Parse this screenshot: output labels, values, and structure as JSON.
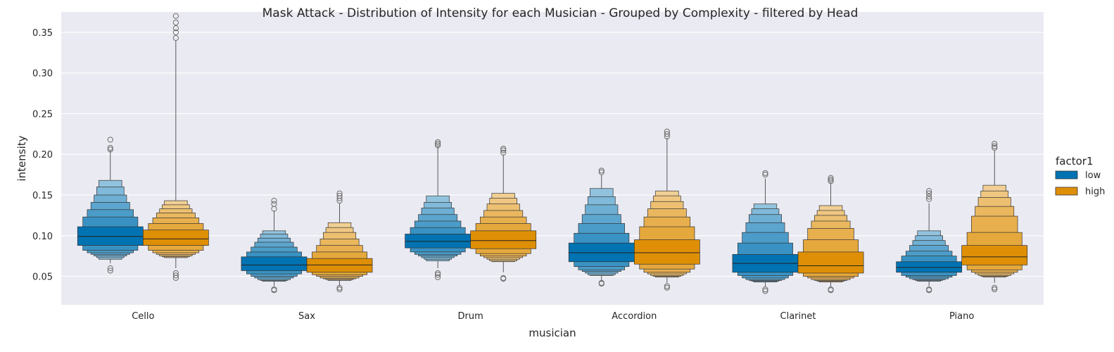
{
  "chart_data": {
    "type": "boxen",
    "title": "Mask Attack - Distribution of Intensity for each Musician - Grouped by Complexity - filtered by Head",
    "xlabel": "musician",
    "ylabel": "intensity",
    "ylim": [
      0.015,
      0.375
    ],
    "yticks": [
      0.05,
      0.1,
      0.15,
      0.2,
      0.25,
      0.3,
      0.35
    ],
    "ytick_labels": [
      "0.05",
      "0.10",
      "0.15",
      "0.20",
      "0.25",
      "0.30",
      "0.35"
    ],
    "grid": true,
    "legend_position": "right",
    "legend_title": "factor1",
    "categories": [
      "Cello",
      "Sax",
      "Drum",
      "Accordion",
      "Clarinet",
      "Piano"
    ],
    "series": [
      {
        "name": "low",
        "color": "#0173b2",
        "boxes": [
          {
            "median": 0.099,
            "quantiles": [
              [
                0.088,
                0.111
              ],
              [
                0.082,
                0.123
              ],
              [
                0.079,
                0.132
              ],
              [
                0.077,
                0.141
              ],
              [
                0.075,
                0.15
              ],
              [
                0.073,
                0.16
              ],
              [
                0.071,
                0.168
              ]
            ],
            "whisker_low": 0.066,
            "whisker_high": 0.205,
            "outliers": [
              0.218,
              0.208,
              0.206,
              0.06,
              0.057
            ]
          },
          {
            "median": 0.064,
            "quantiles": [
              [
                0.057,
                0.074
              ],
              [
                0.053,
                0.08
              ],
              [
                0.05,
                0.086
              ],
              [
                0.048,
                0.092
              ],
              [
                0.046,
                0.097
              ],
              [
                0.045,
                0.102
              ],
              [
                0.044,
                0.106
              ]
            ],
            "whisker_low": 0.038,
            "whisker_high": 0.131,
            "outliers": [
              0.143,
              0.139,
              0.133,
              0.034,
              0.033
            ]
          },
          {
            "median": 0.093,
            "quantiles": [
              [
                0.085,
                0.102
              ],
              [
                0.08,
                0.11
              ],
              [
                0.077,
                0.118
              ],
              [
                0.075,
                0.126
              ],
              [
                0.073,
                0.134
              ],
              [
                0.071,
                0.141
              ],
              [
                0.069,
                0.149
              ]
            ],
            "whisker_low": 0.06,
            "whisker_high": 0.21,
            "outliers": [
              0.215,
              0.213,
              0.211,
              0.054,
              0.052,
              0.049
            ]
          },
          {
            "median": 0.079,
            "quantiles": [
              [
                0.068,
                0.091
              ],
              [
                0.062,
                0.103
              ],
              [
                0.058,
                0.115
              ],
              [
                0.056,
                0.126
              ],
              [
                0.054,
                0.138
              ],
              [
                0.052,
                0.148
              ],
              [
                0.051,
                0.158
              ]
            ],
            "whisker_low": 0.044,
            "whisker_high": 0.175,
            "outliers": [
              0.18,
              0.178,
              0.042,
              0.041
            ]
          },
          {
            "median": 0.066,
            "quantiles": [
              [
                0.055,
                0.077
              ],
              [
                0.051,
                0.091
              ],
              [
                0.048,
                0.104
              ],
              [
                0.046,
                0.116
              ],
              [
                0.045,
                0.126
              ],
              [
                0.044,
                0.133
              ],
              [
                0.043,
                0.139
              ]
            ],
            "whisker_low": 0.037,
            "whisker_high": 0.17,
            "outliers": [
              0.177,
              0.175,
              0.034,
              0.032
            ]
          },
          {
            "median": 0.061,
            "quantiles": [
              [
                0.055,
                0.068
              ],
              [
                0.051,
                0.075
              ],
              [
                0.049,
                0.081
              ],
              [
                0.047,
                0.088
              ],
              [
                0.046,
                0.094
              ],
              [
                0.045,
                0.1
              ],
              [
                0.044,
                0.106
              ]
            ],
            "whisker_low": 0.038,
            "whisker_high": 0.14,
            "outliers": [
              0.155,
              0.152,
              0.148,
              0.145,
              0.034,
              0.033
            ]
          }
        ]
      },
      {
        "name": "high",
        "color": "#de8f05",
        "boxes": [
          {
            "median": 0.096,
            "quantiles": [
              [
                0.088,
                0.107
              ],
              [
                0.082,
                0.115
              ],
              [
                0.079,
                0.122
              ],
              [
                0.077,
                0.128
              ],
              [
                0.075,
                0.133
              ],
              [
                0.074,
                0.138
              ],
              [
                0.073,
                0.143
              ]
            ],
            "whisker_low": 0.06,
            "whisker_high": 0.34,
            "outliers": [
              0.37,
              0.362,
              0.355,
              0.35,
              0.343,
              0.054,
              0.051,
              0.048
            ]
          },
          {
            "median": 0.064,
            "quantiles": [
              [
                0.055,
                0.072
              ],
              [
                0.052,
                0.08
              ],
              [
                0.05,
                0.088
              ],
              [
                0.048,
                0.096
              ],
              [
                0.047,
                0.104
              ],
              [
                0.046,
                0.11
              ],
              [
                0.045,
                0.116
              ]
            ],
            "whisker_low": 0.038,
            "whisker_high": 0.14,
            "outliers": [
              0.152,
              0.149,
              0.146,
              0.143,
              0.036,
              0.034
            ]
          },
          {
            "median": 0.094,
            "quantiles": [
              [
                0.084,
                0.106
              ],
              [
                0.078,
                0.115
              ],
              [
                0.075,
                0.123
              ],
              [
                0.073,
                0.131
              ],
              [
                0.071,
                0.139
              ],
              [
                0.069,
                0.146
              ],
              [
                0.068,
                0.152
              ]
            ],
            "whisker_low": 0.055,
            "whisker_high": 0.2,
            "outliers": [
              0.207,
              0.205,
              0.202,
              0.048,
              0.047
            ]
          },
          {
            "median": 0.079,
            "quantiles": [
              [
                0.065,
                0.095
              ],
              [
                0.059,
                0.111
              ],
              [
                0.055,
                0.123
              ],
              [
                0.053,
                0.133
              ],
              [
                0.051,
                0.142
              ],
              [
                0.05,
                0.149
              ],
              [
                0.049,
                0.155
              ]
            ],
            "whisker_low": 0.042,
            "whisker_high": 0.22,
            "outliers": [
              0.228,
              0.225,
              0.222,
              0.038,
              0.036
            ]
          },
          {
            "median": 0.063,
            "quantiles": [
              [
                0.054,
                0.08
              ],
              [
                0.05,
                0.095
              ],
              [
                0.048,
                0.109
              ],
              [
                0.046,
                0.118
              ],
              [
                0.045,
                0.125
              ],
              [
                0.044,
                0.131
              ],
              [
                0.043,
                0.137
              ]
            ],
            "whisker_low": 0.037,
            "whisker_high": 0.165,
            "outliers": [
              0.171,
              0.169,
              0.167,
              0.034,
              0.033
            ]
          },
          {
            "median": 0.074,
            "quantiles": [
              [
                0.064,
                0.088
              ],
              [
                0.058,
                0.104
              ],
              [
                0.055,
                0.124
              ],
              [
                0.053,
                0.136
              ],
              [
                0.051,
                0.147
              ],
              [
                0.05,
                0.155
              ],
              [
                0.049,
                0.162
              ]
            ],
            "whisker_low": 0.042,
            "whisker_high": 0.205,
            "outliers": [
              0.213,
              0.21,
              0.208,
              0.036,
              0.034
            ]
          }
        ]
      }
    ]
  }
}
